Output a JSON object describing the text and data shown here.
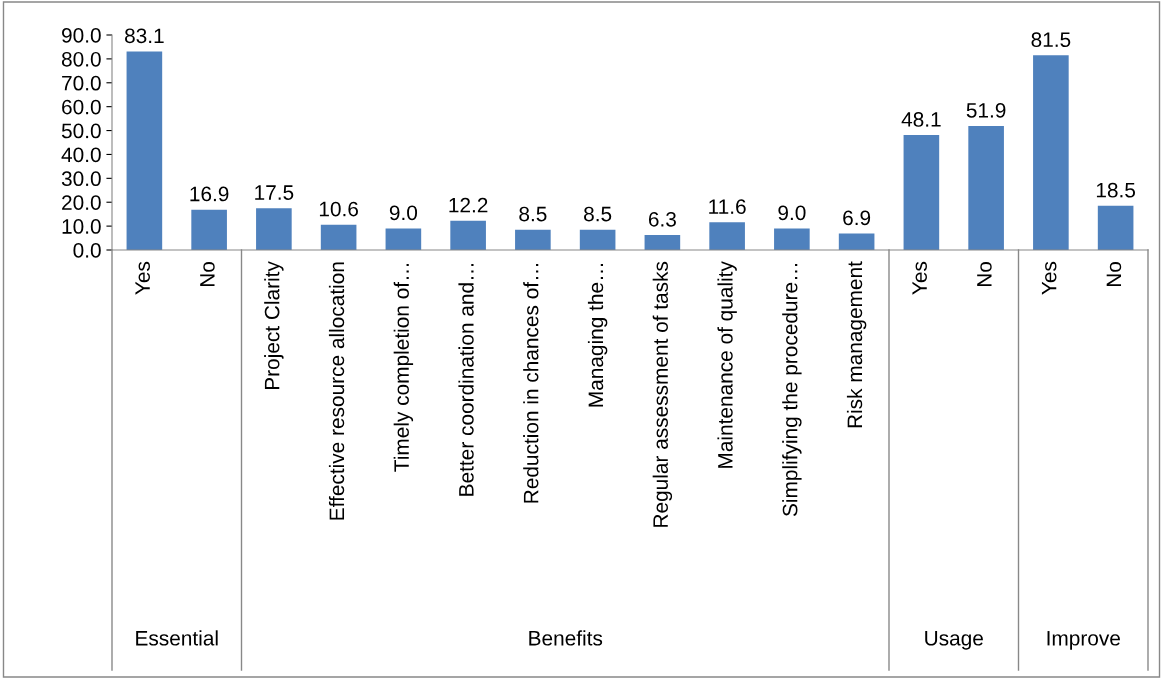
{
  "chart_data": {
    "type": "bar",
    "categories": [
      "Yes",
      "No",
      "Project Clarity",
      "Effective resource allocation",
      "Timely completion of…",
      "Better coordination and…",
      "Reduction in chances of…",
      "Managing the…",
      "Regular assessment of tasks",
      "Maintenance of quality",
      "Simplifying the procedure…",
      "Risk management",
      "Yes",
      "No",
      "Yes",
      "No"
    ],
    "values": [
      83.1,
      16.9,
      17.5,
      10.6,
      9.0,
      12.2,
      8.5,
      8.5,
      6.3,
      11.6,
      9.0,
      6.9,
      48.1,
      51.9,
      81.5,
      18.5
    ],
    "color": "#4f81bd",
    "value_labels": [
      "83.1",
      "16.9",
      "17.5",
      "10.6",
      "9.0",
      "12.2",
      "8.5",
      "8.5",
      "6.3",
      "11.6",
      "9.0",
      "6.9",
      "48.1",
      "51.9",
      "81.5",
      "18.5"
    ],
    "annotations": [
      "Essential",
      "Benefits",
      "Usage",
      "Improve"
    ],
    "ylim": [
      0,
      90
    ],
    "yticks": [
      {
        "value": 0,
        "label": "0.0"
      },
      {
        "value": 10,
        "label": "10.0"
      },
      {
        "value": 20,
        "label": "20.0"
      },
      {
        "value": 30,
        "label": "30.0"
      },
      {
        "value": 40,
        "label": "40.0"
      },
      {
        "value": 50,
        "label": "50.0"
      },
      {
        "value": 60,
        "label": "60.0"
      },
      {
        "value": 70,
        "label": "70.0"
      },
      {
        "value": 80,
        "label": "80.0"
      },
      {
        "value": 90,
        "label": "90.0"
      }
    ],
    "grid": false,
    "legend": false
  }
}
